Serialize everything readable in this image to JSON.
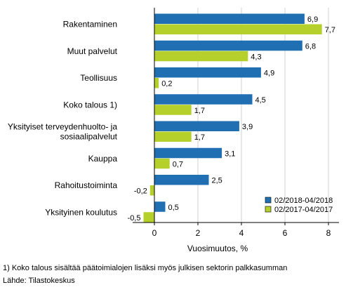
{
  "chart_data": {
    "type": "bar",
    "orientation": "horizontal",
    "categories": [
      [
        "Rakentaminen"
      ],
      [
        "Muut palvelut"
      ],
      [
        "Teollisuus"
      ],
      [
        "Koko talous 1)"
      ],
      [
        "Yksityiset terveydenhuolto- ja",
        "sosiaalipalvelut"
      ],
      [
        "Kauppa"
      ],
      [
        "Rahoitustoiminta"
      ],
      [
        "Yksityinen koulutus"
      ]
    ],
    "series": [
      {
        "name": "02/2018-04/2018",
        "color": "#1f6fb2",
        "values": [
          6.9,
          6.8,
          4.9,
          4.5,
          3.9,
          3.1,
          2.5,
          0.5
        ],
        "labels": [
          "6,9",
          "6,8",
          "4,9",
          "4,5",
          "3,9",
          "3,1",
          "2,5",
          "0,5"
        ]
      },
      {
        "name": "02/2017-04/2017",
        "color": "#b5cf2b",
        "values": [
          7.7,
          4.3,
          0.2,
          1.7,
          1.7,
          0.7,
          -0.2,
          -0.5
        ],
        "labels": [
          "7,7",
          "4,3",
          "0,2",
          "1,7",
          "1,7",
          "0,7",
          "-0,2",
          "-0,5"
        ]
      }
    ],
    "xlabel": "Vuosimuutos, %",
    "xlim": [
      -1,
      8
    ],
    "xticks": [
      0,
      2,
      4,
      6,
      8
    ],
    "grid": true,
    "legend": "bottom-right"
  },
  "footnotes": {
    "note": "1) Koko talous sisältää päätoimialojen lisäksi myös julkisen sektorin palkkasumman",
    "source": "Lähde: Tilastokeskus"
  }
}
